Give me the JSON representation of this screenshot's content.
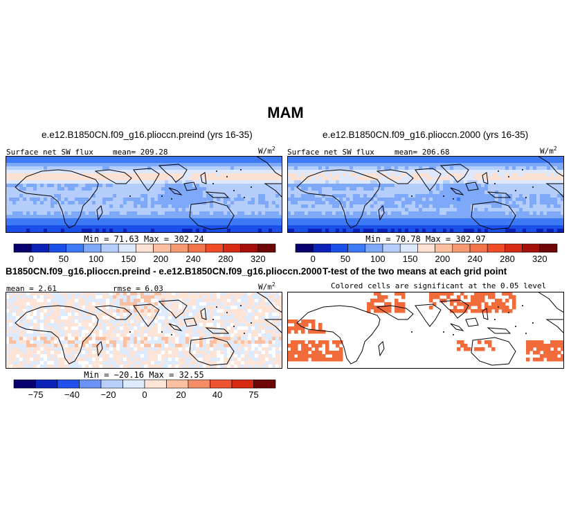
{
  "figure_title": "MAM",
  "colors": {
    "seq": [
      "#08006e",
      "#0a22b8",
      "#1a4fe8",
      "#3d7af5",
      "#7ea8f8",
      "#b4cdfb",
      "#dde8fd",
      "#fde2d4",
      "#fbbf9f",
      "#f79a72",
      "#f3744a",
      "#ee4b26",
      "#d72a12",
      "#a50f0a",
      "#6e0606"
    ],
    "diff": [
      "#08006e",
      "#0a22b8",
      "#2250ea",
      "#6b93f6",
      "#b8cffb",
      "#deeafd",
      "#fde4d6",
      "#fbc0a1",
      "#f58e66",
      "#ee5432",
      "#d72a12",
      "#6e0606"
    ],
    "sig": "#f26b3a",
    "coast": "#000000"
  },
  "panels": [
    {
      "id": "preind",
      "title": "e.e12.B1850CN.f09_g16.plioccn.preind (yrs 16-35)",
      "left_label": "Surface net SW flux",
      "mean_label": "mean= 209.28",
      "units_base": "W/m",
      "units_exp": "2",
      "minmax": "Min =  71.63 Max = 302.24",
      "colorbar_labels": [
        "0",
        "50",
        "100",
        "150",
        "200",
        "240",
        "280",
        "320"
      ]
    },
    {
      "id": "2000",
      "title": "e.e12.B1850CN.f09_g16.plioccn.2000 (yrs 16-35)",
      "left_label": "Surface net SW flux",
      "mean_label": "mean= 206.68",
      "units_base": "W/m",
      "units_exp": "2",
      "minmax": "Min =  70.78 Max = 302.97",
      "colorbar_labels": [
        "0",
        "50",
        "100",
        "150",
        "200",
        "240",
        "280",
        "320"
      ]
    },
    {
      "id": "diff",
      "title": "B1850CN.f09_g16.plioccn.preind - e.e12.B1850CN.f09_g16.plioccn.2000",
      "left_label": "mean =  2.61",
      "mean_label": "rmse =  6.03",
      "units_base": "W/m",
      "units_exp": "2",
      "minmax": "Min = −20.16 Max =  32.55",
      "colorbar_labels": [
        "−75",
        "−40",
        "−20",
        "0",
        "20",
        "40",
        "75"
      ]
    },
    {
      "id": "ttest",
      "title": "T-test of the two means at each grid point",
      "subtitle": "Colored cells are significant at the 0.05 level"
    }
  ]
}
